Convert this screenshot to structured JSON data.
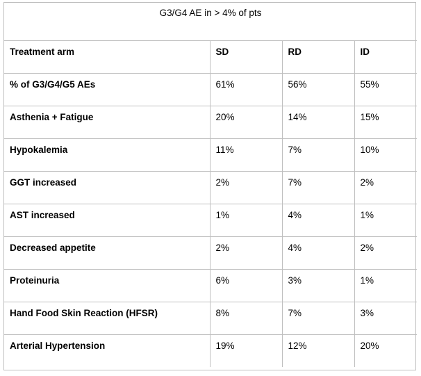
{
  "title": "G3/G4 AE in > 4% of pts",
  "header": {
    "label": "Treatment arm",
    "cols": [
      "SD",
      "RD",
      "ID"
    ]
  },
  "rows": [
    {
      "label": "% of G3/G4/G5 AEs",
      "values": [
        "61%",
        "56%",
        "55%"
      ]
    },
    {
      "label": "Asthenia + Fatigue",
      "values": [
        "20%",
        "14%",
        "15%"
      ]
    },
    {
      "label": "Hypokalemia",
      "values": [
        "11%",
        "7%",
        "10%"
      ]
    },
    {
      "label": "GGT increased",
      "values": [
        "2%",
        "7%",
        "2%"
      ]
    },
    {
      "label": "AST increased",
      "values": [
        "1%",
        "4%",
        "1%"
      ]
    },
    {
      "label": "Decreased appetite",
      "values": [
        "2%",
        "4%",
        "2%"
      ]
    },
    {
      "label": "Proteinuria",
      "values": [
        "6%",
        "3%",
        "1%"
      ]
    },
    {
      "label": "Hand Food Skin Reaction (HFSR)",
      "values": [
        "8%",
        "7%",
        "3%"
      ]
    },
    {
      "label": "Arterial Hypertension",
      "values": [
        "19%",
        "12%",
        "20%"
      ]
    }
  ]
}
